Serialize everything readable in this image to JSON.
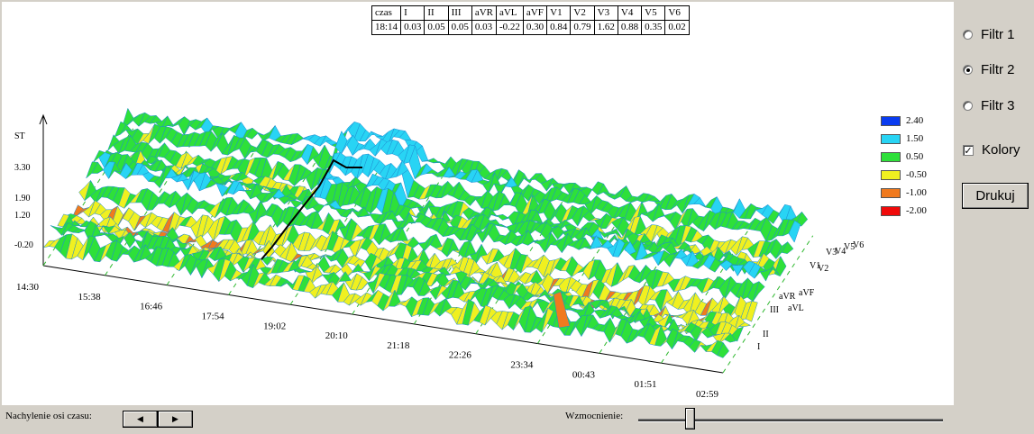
{
  "table": {
    "headers": [
      "czas",
      "I",
      "II",
      "III",
      "aVR",
      "aVL",
      "aVF",
      "V1",
      "V2",
      "V3",
      "V4",
      "V5",
      "V6"
    ],
    "values": [
      "18:14",
      "0.03",
      "0.05",
      "0.05",
      "0.03",
      "-0.22",
      "0.30",
      "0.84",
      "0.79",
      "1.62",
      "0.88",
      "0.35",
      "0.02"
    ]
  },
  "plot": {
    "y_axis_label": "ST",
    "y_ticks": [
      "3.30",
      "1.90",
      "1.20",
      "-0.20"
    ],
    "time_ticks": [
      "14:30",
      "15:38",
      "16:46",
      "17:54",
      "19:02",
      "20:10",
      "21:18",
      "22:26",
      "23:34",
      "00:43",
      "01:51",
      "02:59"
    ],
    "lead_labels": [
      "I",
      "II",
      "III",
      "aVL",
      "aVR",
      "aVF",
      "V1",
      "V2",
      "V3",
      "V4",
      "V5",
      "V6"
    ],
    "colors": {
      "blue": "#0a3cf0",
      "cyan": "#28d4f4",
      "green": "#2ee03a",
      "yellow": "#f0f020",
      "orange": "#f07a1e",
      "red": "#f00a0a",
      "edge": "#1e8cd2",
      "grid": "#2eb82e"
    }
  },
  "legend": [
    {
      "value": "2.40",
      "color": "#0a3cf0"
    },
    {
      "value": "1.50",
      "color": "#28d4f4"
    },
    {
      "value": "0.50",
      "color": "#2ee03a"
    },
    {
      "value": "-0.50",
      "color": "#f0f020"
    },
    {
      "value": "-1.00",
      "color": "#f07a1e"
    },
    {
      "value": "-2.00",
      "color": "#f00a0a"
    }
  ],
  "filters": [
    {
      "label": "Filtr 1",
      "selected": false
    },
    {
      "label": "Filtr 2",
      "selected": true
    },
    {
      "label": "Filtr 3",
      "selected": false
    }
  ],
  "colors_checkbox": {
    "label": "Kolory",
    "checked": true
  },
  "print_button": {
    "label": "Drukuj"
  },
  "bottom": {
    "tilt_label": "Nachylenie osi czasu:",
    "tilt_left": "◀",
    "tilt_right": "▶",
    "gain_label": "Wzmocnienie:",
    "gain_value": 0.17
  }
}
